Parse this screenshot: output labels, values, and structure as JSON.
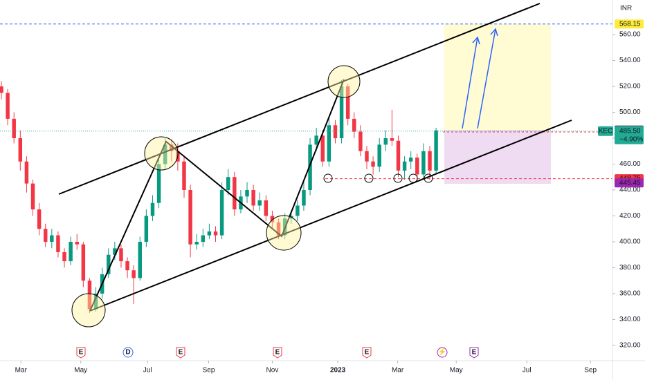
{
  "chart_data": {
    "type": "candlestick",
    "currency": "INR",
    "up_color": "#089981",
    "down_color": "#f23645",
    "candles": [
      [
        520,
        524,
        510,
        515
      ],
      [
        515,
        518,
        490,
        495
      ],
      [
        495,
        500,
        476,
        480
      ],
      [
        480,
        486,
        455,
        462
      ],
      [
        462,
        466,
        438,
        445
      ],
      [
        445,
        448,
        420,
        425
      ],
      [
        425,
        430,
        405,
        410
      ],
      [
        410,
        414,
        396,
        400
      ],
      [
        400,
        410,
        395,
        405
      ],
      [
        405,
        408,
        388,
        392
      ],
      [
        392,
        395,
        380,
        385
      ],
      [
        385,
        404,
        382,
        400
      ],
      [
        400,
        406,
        394,
        398
      ],
      [
        398,
        400,
        365,
        370
      ],
      [
        370,
        372,
        345,
        348
      ],
      [
        348,
        365,
        346,
        360
      ],
      [
        360,
        380,
        356,
        375
      ],
      [
        375,
        395,
        372,
        390
      ],
      [
        390,
        400,
        386,
        395
      ],
      [
        395,
        398,
        380,
        385
      ],
      [
        385,
        388,
        372,
        378
      ],
      [
        378,
        382,
        352,
        372
      ],
      [
        372,
        404,
        370,
        400
      ],
      [
        400,
        425,
        396,
        420
      ],
      [
        420,
        436,
        416,
        430
      ],
      [
        430,
        466,
        426,
        460
      ],
      [
        460,
        480,
        456,
        475
      ],
      [
        475,
        479,
        462,
        470
      ],
      [
        470,
        476,
        455,
        462
      ],
      [
        462,
        466,
        434,
        440
      ],
      [
        440,
        444,
        388,
        398
      ],
      [
        398,
        406,
        394,
        400
      ],
      [
        400,
        410,
        396,
        405
      ],
      [
        405,
        414,
        402,
        408
      ],
      [
        408,
        412,
        400,
        405
      ],
      [
        405,
        446,
        402,
        440
      ],
      [
        440,
        456,
        436,
        450
      ],
      [
        450,
        454,
        420,
        425
      ],
      [
        425,
        440,
        422,
        435
      ],
      [
        435,
        446,
        430,
        440
      ],
      [
        440,
        444,
        424,
        428
      ],
      [
        428,
        438,
        424,
        432
      ],
      [
        432,
        436,
        416,
        420
      ],
      [
        420,
        424,
        410,
        415
      ],
      [
        415,
        418,
        402,
        405
      ],
      [
        405,
        422,
        402,
        418
      ],
      [
        418,
        424,
        414,
        420
      ],
      [
        420,
        432,
        416,
        428
      ],
      [
        428,
        446,
        424,
        440
      ],
      [
        440,
        480,
        436,
        475
      ],
      [
        475,
        488,
        470,
        482
      ],
      [
        482,
        486,
        458,
        462
      ],
      [
        462,
        496,
        458,
        490
      ],
      [
        490,
        494,
        476,
        480
      ],
      [
        480,
        525,
        476,
        520
      ],
      [
        520,
        522,
        490,
        495
      ],
      [
        495,
        500,
        480,
        485
      ],
      [
        485,
        490,
        466,
        470
      ],
      [
        470,
        474,
        456,
        462
      ],
      [
        462,
        466,
        452,
        458
      ],
      [
        458,
        480,
        454,
        475
      ],
      [
        475,
        486,
        470,
        480
      ],
      [
        480,
        502,
        474,
        478
      ],
      [
        478,
        482,
        450,
        455
      ],
      [
        455,
        466,
        448,
        462
      ],
      [
        462,
        470,
        456,
        465
      ],
      [
        465,
        468,
        448,
        452
      ],
      [
        452,
        476,
        448,
        470
      ],
      [
        470,
        474,
        448,
        455
      ],
      [
        455,
        488,
        452,
        486
      ]
    ],
    "ylim": [
      309.3,
      586.7
    ],
    "yticks": [
      {
        "value": 320,
        "label": "320.00"
      },
      {
        "value": 340,
        "label": "340.00"
      },
      {
        "value": 360,
        "label": "360.00"
      },
      {
        "value": 380,
        "label": "380.00"
      },
      {
        "value": 400,
        "label": "400.00"
      },
      {
        "value": 420,
        "label": "420.00"
      },
      {
        "value": 440,
        "label": "440.00"
      },
      {
        "value": 460,
        "label": "460.00"
      },
      {
        "value": 480,
        "label": "480.00"
      },
      {
        "value": 500,
        "label": "500.00"
      },
      {
        "value": 520,
        "label": "520.00"
      },
      {
        "value": 540,
        "label": "540.00"
      },
      {
        "value": 560,
        "label": "560.00"
      }
    ],
    "xlim": [
      -0.22,
      97.0
    ],
    "xticks": [
      {
        "value": 3.1,
        "label": "Mar"
      },
      {
        "value": 12.6,
        "label": "May"
      },
      {
        "value": 23.2,
        "label": "Jul"
      },
      {
        "value": 32.9,
        "label": "Sep"
      },
      {
        "value": 43.0,
        "label": "Nov"
      },
      {
        "value": 53.4,
        "label": "2023"
      },
      {
        "value": 62.9,
        "label": "Mar"
      },
      {
        "value": 72.2,
        "label": "May"
      },
      {
        "value": 83.4,
        "label": "Jul"
      },
      {
        "value": 93.5,
        "label": "Sep"
      }
    ],
    "price_labels": [
      {
        "value": 568.15,
        "color": "#ffeb3b",
        "text_color": "#131722"
      },
      {
        "value": 486.35,
        "color": "#555a66",
        "text_color": "#ffffff"
      },
      {
        "value": {
          "value": 484.8,
          "label": "484.80"
        },
        "color": "#f23645",
        "text_color": "#ffffff"
      },
      {
        "value": 448.75,
        "color": "#f23645",
        "text_color": "#ffffff"
      },
      {
        "value": 445.45,
        "color": "#9c27b0",
        "text_color": "#ffffff"
      }
    ],
    "last": {
      "symbol": "KEC",
      "price": {
        "value": 485.5,
        "label": "485.50"
      },
      "change": "−4.90%",
      "color": "#22ab94"
    },
    "events": [
      "E",
      "D",
      "E",
      "E",
      "E",
      "⚡",
      "E"
    ]
  }
}
